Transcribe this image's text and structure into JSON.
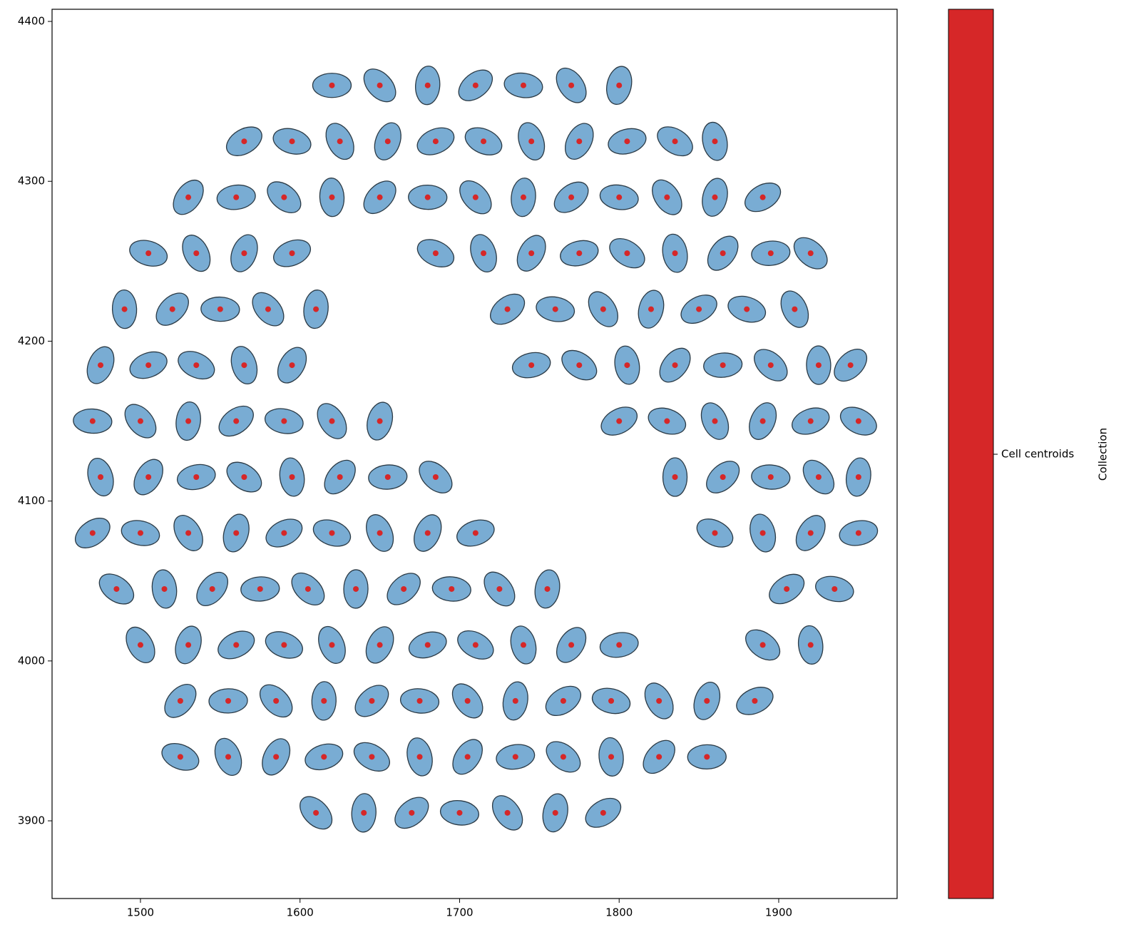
{
  "chart_data": {
    "type": "scatter",
    "xlim": [
      1444.6,
      1974.2
    ],
    "ylim": [
      3851.4,
      4407.6
    ],
    "xticks": [
      1500,
      1600,
      1700,
      1800,
      1900
    ],
    "yticks": [
      3900,
      4000,
      4100,
      4200,
      4300,
      4400
    ],
    "grid": false,
    "cell_color": "#79acd3",
    "colorbar_label": "Collection",
    "series": [
      {
        "name": "Cell centroids",
        "color": "#d62728",
        "x": [
          1620,
          1650,
          1680,
          1710,
          1740,
          1770,
          1800,
          1565,
          1595,
          1625,
          1655,
          1685,
          1715,
          1745,
          1775,
          1805,
          1835,
          1860,
          1530,
          1560,
          1590,
          1620,
          1650,
          1680,
          1710,
          1740,
          1770,
          1800,
          1830,
          1860,
          1890,
          1505,
          1535,
          1565,
          1595,
          1685,
          1715,
          1745,
          1775,
          1805,
          1835,
          1865,
          1895,
          1920,
          1490,
          1520,
          1550,
          1580,
          1610,
          1730,
          1760,
          1790,
          1820,
          1850,
          1880,
          1910,
          1475,
          1505,
          1535,
          1565,
          1595,
          1745,
          1775,
          1805,
          1835,
          1865,
          1895,
          1925,
          1945,
          1470,
          1500,
          1530,
          1560,
          1590,
          1620,
          1650,
          1800,
          1830,
          1860,
          1890,
          1920,
          1950,
          1475,
          1505,
          1535,
          1565,
          1595,
          1625,
          1655,
          1685,
          1835,
          1865,
          1895,
          1925,
          1950,
          1470,
          1500,
          1530,
          1560,
          1590,
          1620,
          1650,
          1680,
          1710,
          1860,
          1890,
          1920,
          1950,
          1485,
          1515,
          1545,
          1575,
          1605,
          1635,
          1665,
          1695,
          1725,
          1755,
          1905,
          1935,
          1500,
          1530,
          1560,
          1590,
          1620,
          1650,
          1680,
          1710,
          1740,
          1770,
          1800,
          1890,
          1920,
          1525,
          1555,
          1585,
          1615,
          1645,
          1675,
          1705,
          1735,
          1765,
          1795,
          1825,
          1855,
          1885,
          1525,
          1555,
          1585,
          1615,
          1645,
          1675,
          1705,
          1735,
          1765,
          1795,
          1825,
          1855,
          1610,
          1640,
          1670,
          1700,
          1730,
          1760,
          1790
        ],
        "values": [
          4360,
          4360,
          4360,
          4360,
          4360,
          4360,
          4360,
          4325,
          4325,
          4325,
          4325,
          4325,
          4325,
          4325,
          4325,
          4325,
          4325,
          4325,
          4290,
          4290,
          4290,
          4290,
          4290,
          4290,
          4290,
          4290,
          4290,
          4290,
          4290,
          4290,
          4290,
          4255,
          4255,
          4255,
          4255,
          4255,
          4255,
          4255,
          4255,
          4255,
          4255,
          4255,
          4255,
          4255,
          4220,
          4220,
          4220,
          4220,
          4220,
          4220,
          4220,
          4220,
          4220,
          4220,
          4220,
          4220,
          4185,
          4185,
          4185,
          4185,
          4185,
          4185,
          4185,
          4185,
          4185,
          4185,
          4185,
          4185,
          4185,
          4150,
          4150,
          4150,
          4150,
          4150,
          4150,
          4150,
          4150,
          4150,
          4150,
          4150,
          4150,
          4150,
          4115,
          4115,
          4115,
          4115,
          4115,
          4115,
          4115,
          4115,
          4115,
          4115,
          4115,
          4115,
          4115,
          4080,
          4080,
          4080,
          4080,
          4080,
          4080,
          4080,
          4080,
          4080,
          4080,
          4080,
          4080,
          4080,
          4045,
          4045,
          4045,
          4045,
          4045,
          4045,
          4045,
          4045,
          4045,
          4045,
          4045,
          4045,
          4010,
          4010,
          4010,
          4010,
          4010,
          4010,
          4010,
          4010,
          4010,
          4010,
          4010,
          4010,
          4010,
          3975,
          3975,
          3975,
          3975,
          3975,
          3975,
          3975,
          3975,
          3975,
          3975,
          3975,
          3975,
          3975,
          3940,
          3940,
          3940,
          3940,
          3940,
          3940,
          3940,
          3940,
          3940,
          3940,
          3940,
          3940,
          3905,
          3905,
          3905,
          3905,
          3905,
          3905,
          3905
        ]
      }
    ]
  }
}
